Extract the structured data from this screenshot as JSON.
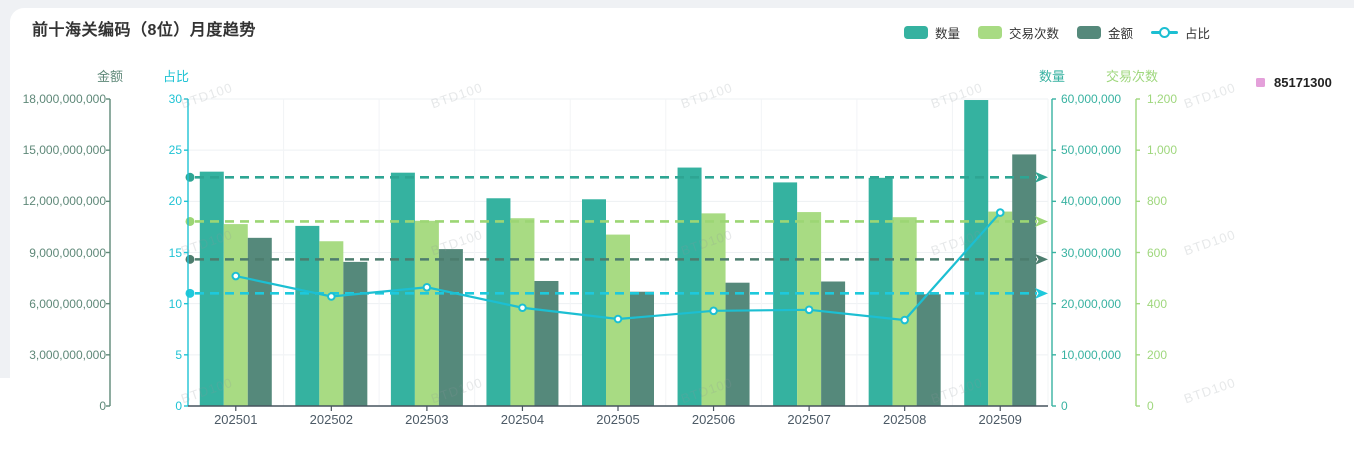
{
  "page": {
    "watermark_text": "BTD100",
    "background_color": "#EFF1F4",
    "card_color": "#FFFFFF"
  },
  "header": {
    "title": "前十海关编码（8位）月度趋势"
  },
  "chart_legend": {
    "items": [
      {
        "label": "数量",
        "type": "bar",
        "color": "#35B2A0"
      },
      {
        "label": "交易次数",
        "type": "bar",
        "color": "#A8DB83"
      },
      {
        "label": "金额",
        "type": "bar",
        "color": "#55897B"
      },
      {
        "label": "占比",
        "type": "line",
        "color": "#1CBFD2"
      }
    ]
  },
  "code_legend": {
    "label": "85171300",
    "color": "#E4A0DA"
  },
  "chart_data": {
    "type": "bar",
    "title": "前十海关编码（8位）月度趋势",
    "categories": [
      "202501",
      "202502",
      "202503",
      "202504",
      "202505",
      "202506",
      "202507",
      "202508",
      "202509"
    ],
    "series": [
      {
        "name": "数量",
        "type": "bar",
        "yaxis": "数量",
        "color": "#35B2A0",
        "mark_color": "#2EA593",
        "values": [
          45800000,
          35200000,
          45600000,
          40600000,
          40400000,
          46600000,
          43700000,
          44600000,
          59800000
        ],
        "average_markline": true
      },
      {
        "name": "交易次数",
        "type": "bar",
        "yaxis": "交易次数",
        "color": "#A8DB83",
        "mark_color": "#9CD674",
        "values": [
          711,
          644,
          724,
          734,
          670,
          753,
          758,
          738,
          760
        ],
        "average_markline": true
      },
      {
        "name": "金额",
        "type": "bar",
        "yaxis": "金额",
        "color": "#55897B",
        "mark_color": "#4C7D6E",
        "values": [
          9860000000,
          8450000000,
          9200000000,
          7330000000,
          6700000000,
          7230000000,
          7300000000,
          6550000000,
          14750000000
        ],
        "average_markline": true
      },
      {
        "name": "占比",
        "type": "line",
        "yaxis": "占比",
        "color": "#1CBFD2",
        "mark_color": "#1EC9DC",
        "values": [
          12.7,
          10.7,
          11.6,
          9.6,
          8.5,
          9.3,
          9.4,
          8.4,
          18.9
        ],
        "average_markline": true
      }
    ],
    "yaxes": [
      {
        "name": "金额",
        "position": "left-outer",
        "color": "#5E8878",
        "min": 0,
        "max": 18000000000,
        "ticks": [
          "0",
          "3,000,000,000",
          "6,000,000,000",
          "9,000,000,000",
          "12,000,000,000",
          "15,000,000,000",
          "18,000,000,000"
        ]
      },
      {
        "name": "占比",
        "position": "left-inner",
        "color": "#1FC3D4",
        "min": 0,
        "max": 30,
        "ticks": [
          "0",
          "5",
          "10",
          "15",
          "20",
          "25",
          "30"
        ]
      },
      {
        "name": "数量",
        "position": "right-inner",
        "color": "#38B2A1",
        "min": 0,
        "max": 60000000,
        "ticks": [
          "0",
          "10,000,000",
          "20,000,000",
          "30,000,000",
          "40,000,000",
          "50,000,000",
          "60,000,000"
        ]
      },
      {
        "name": "交易次数",
        "position": "right-outer",
        "color": "#9FD77D",
        "min": 0,
        "max": 1200,
        "ticks": [
          "0",
          "200",
          "400",
          "600",
          "800",
          "1,000",
          "1,200"
        ]
      }
    ],
    "xaxis": {
      "line_color": "#47545E",
      "label_color": "#4C5A66"
    },
    "grid": true,
    "legend_position": "top-right"
  }
}
